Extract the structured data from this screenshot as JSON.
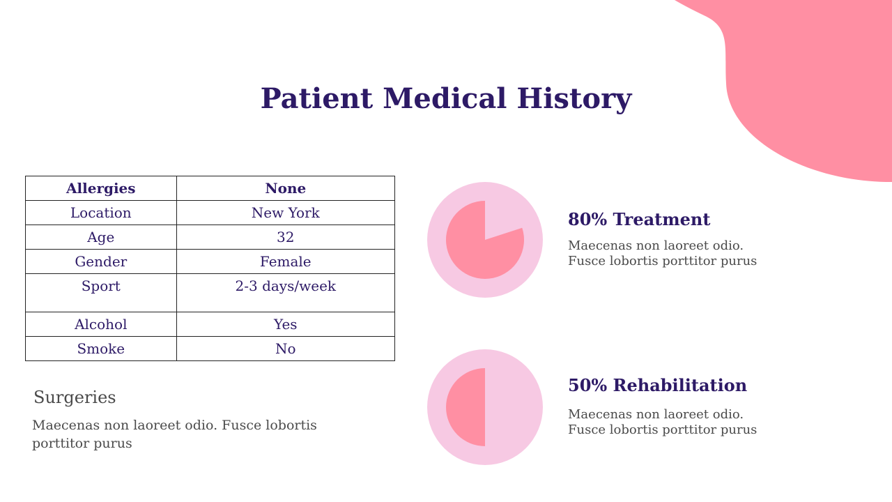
{
  "colors": {
    "accent_pink": "#ff8fa3",
    "light_pink": "#f7c9e3",
    "title_purple": "#2d1a66",
    "body_gray": "#4a4a4a"
  },
  "slide": {
    "title": "Patient Medical History"
  },
  "table": {
    "header": [
      "Allergies",
      "None"
    ],
    "rows": [
      [
        "Location",
        "New York"
      ],
      [
        "Age",
        "32"
      ],
      [
        "Gender",
        "Female"
      ],
      [
        "Sport",
        "2-3 days/week"
      ],
      [
        "Alcohol",
        "Yes"
      ],
      [
        "Smoke",
        "No"
      ]
    ]
  },
  "surgeries": {
    "title": "Surgeries",
    "text": "Maecenas non laoreet odio. Fusce lobortis porttitor purus"
  },
  "stats": [
    {
      "percent": 80,
      "heading": "80%  Treatment",
      "text1": "Maecenas non laoreet odio.",
      "text2": "Fusce lobortis porttitor purus"
    },
    {
      "percent": 50,
      "heading": "50% Rehabilitation",
      "text1": "Maecenas non laoreet odio.",
      "text2": "Fusce lobortis porttitor purus"
    }
  ]
}
